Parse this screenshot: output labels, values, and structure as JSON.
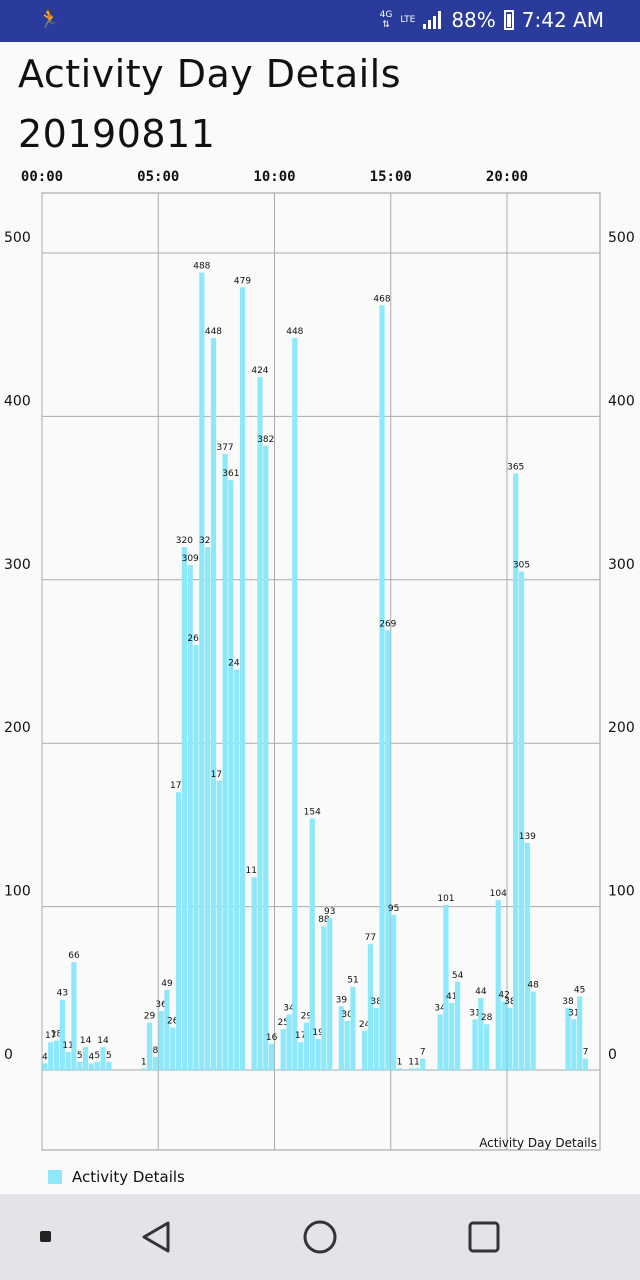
{
  "status_bar": {
    "network": "4G",
    "lte": "LTE",
    "battery": "88%",
    "time": "7:42 AM"
  },
  "page": {
    "title": "Activity Day Details",
    "date": "20190811"
  },
  "colors": {
    "bar": "#8ee8fb",
    "status_bar": "#2a3b9c"
  },
  "chart_data": {
    "type": "bar",
    "title": "",
    "description": "Activity Day Details",
    "xlabel": "",
    "ylabel": "",
    "x_ticks": [
      "00:00",
      "05:00",
      "10:00",
      "15:00",
      "20:00"
    ],
    "y_ticks": [
      0,
      100,
      200,
      300,
      400,
      500
    ],
    "ylim": [
      -36,
      536
    ],
    "grid": true,
    "legend_position": "bottom-left",
    "series": [
      {
        "name": "Activity Details",
        "points": [
          {
            "t": "00:00",
            "v": 4
          },
          {
            "t": "00:15",
            "v": 17
          },
          {
            "t": "00:30",
            "v": 18
          },
          {
            "t": "00:45",
            "v": 43
          },
          {
            "t": "01:00",
            "v": 11
          },
          {
            "t": "01:15",
            "v": 66
          },
          {
            "t": "01:30",
            "v": 5
          },
          {
            "t": "01:45",
            "v": 14
          },
          {
            "t": "02:00",
            "v": 4
          },
          {
            "t": "02:15",
            "v": 5
          },
          {
            "t": "02:30",
            "v": 14
          },
          {
            "t": "02:45",
            "v": 5
          },
          {
            "t": "04:15",
            "v": 1
          },
          {
            "t": "04:30",
            "v": 29
          },
          {
            "t": "04:45",
            "v": 8
          },
          {
            "t": "05:00",
            "v": 36
          },
          {
            "t": "05:15",
            "v": 49
          },
          {
            "t": "05:30",
            "v": 26
          },
          {
            "t": "05:45",
            "v": 170
          },
          {
            "t": "06:00",
            "v": 320
          },
          {
            "t": "06:15",
            "v": 309
          },
          {
            "t": "06:30",
            "v": 260
          },
          {
            "t": "06:45",
            "v": 488
          },
          {
            "t": "07:00",
            "v": 320
          },
          {
            "t": "07:15",
            "v": 448
          },
          {
            "t": "07:30",
            "v": 177
          },
          {
            "t": "07:45",
            "v": 377
          },
          {
            "t": "08:00",
            "v": 361
          },
          {
            "t": "08:15",
            "v": 245
          },
          {
            "t": "08:30",
            "v": 479
          },
          {
            "t": "09:00",
            "v": 118
          },
          {
            "t": "09:15",
            "v": 424
          },
          {
            "t": "09:30",
            "v": 382
          },
          {
            "t": "09:45",
            "v": 16
          },
          {
            "t": "10:15",
            "v": 25
          },
          {
            "t": "10:30",
            "v": 34
          },
          {
            "t": "10:45",
            "v": 448
          },
          {
            "t": "11:00",
            "v": 17
          },
          {
            "t": "11:15",
            "v": 29
          },
          {
            "t": "11:30",
            "v": 154
          },
          {
            "t": "11:45",
            "v": 19
          },
          {
            "t": "12:00",
            "v": 88
          },
          {
            "t": "12:15",
            "v": 93
          },
          {
            "t": "12:45",
            "v": 39
          },
          {
            "t": "13:00",
            "v": 30
          },
          {
            "t": "13:15",
            "v": 51
          },
          {
            "t": "13:45",
            "v": 24
          },
          {
            "t": "14:00",
            "v": 77
          },
          {
            "t": "14:15",
            "v": 38
          },
          {
            "t": "14:30",
            "v": 468
          },
          {
            "t": "14:45",
            "v": 269
          },
          {
            "t": "15:00",
            "v": 95
          },
          {
            "t": "15:15",
            "v": 1
          },
          {
            "t": "15:45",
            "v": 1
          },
          {
            "t": "16:00",
            "v": 1
          },
          {
            "t": "16:15",
            "v": 7
          },
          {
            "t": "17:00",
            "v": 34
          },
          {
            "t": "17:15",
            "v": 101
          },
          {
            "t": "17:30",
            "v": 41
          },
          {
            "t": "17:45",
            "v": 54
          },
          {
            "t": "18:30",
            "v": 31
          },
          {
            "t": "18:45",
            "v": 44
          },
          {
            "t": "19:00",
            "v": 28
          },
          {
            "t": "19:30",
            "v": 104
          },
          {
            "t": "19:45",
            "v": 42
          },
          {
            "t": "20:00",
            "v": 38
          },
          {
            "t": "20:15",
            "v": 365
          },
          {
            "t": "20:30",
            "v": 305
          },
          {
            "t": "20:45",
            "v": 139
          },
          {
            "t": "21:00",
            "v": 48
          },
          {
            "t": "22:30",
            "v": 38
          },
          {
            "t": "22:45",
            "v": 31
          },
          {
            "t": "23:00",
            "v": 45
          },
          {
            "t": "23:15",
            "v": 7
          }
        ]
      }
    ]
  }
}
